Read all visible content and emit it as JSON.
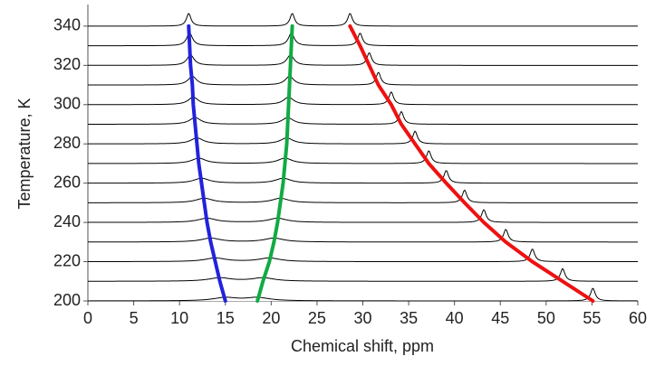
{
  "chart_data": {
    "type": "waterfall",
    "xlabel": "Chemical shift, ppm",
    "ylabel": "Temperature, K",
    "y": [
      200,
      210,
      220,
      230,
      240,
      250,
      260,
      270,
      280,
      290,
      300,
      310,
      320,
      330,
      340
    ],
    "series": [
      {
        "color": "#2222dd",
        "values": [
          15.0,
          14.4,
          13.9,
          13.4,
          13.0,
          12.7,
          12.4,
          12.1,
          11.9,
          11.7,
          11.5,
          11.4,
          11.2,
          11.1,
          11.0
        ]
      },
      {
        "color": "#11aa44",
        "values": [
          18.5,
          19.1,
          19.8,
          20.3,
          20.7,
          21.0,
          21.3,
          21.5,
          21.7,
          21.8,
          21.9,
          22.0,
          22.1,
          22.2,
          22.3
        ]
      },
      {
        "color": "#ee1111",
        "values": [
          55.1,
          51.8,
          48.5,
          45.6,
          43.2,
          41.1,
          39.1,
          37.2,
          35.7,
          34.2,
          33.1,
          31.7,
          30.7,
          29.7,
          28.6
        ]
      }
    ],
    "xlim": [
      0,
      60
    ],
    "ylim": [
      200,
      351
    ],
    "xticks": [
      0,
      5,
      10,
      15,
      20,
      25,
      30,
      35,
      40,
      45,
      50,
      55,
      60
    ],
    "yticks": [
      200,
      220,
      240,
      260,
      280,
      300,
      320,
      340
    ]
  }
}
